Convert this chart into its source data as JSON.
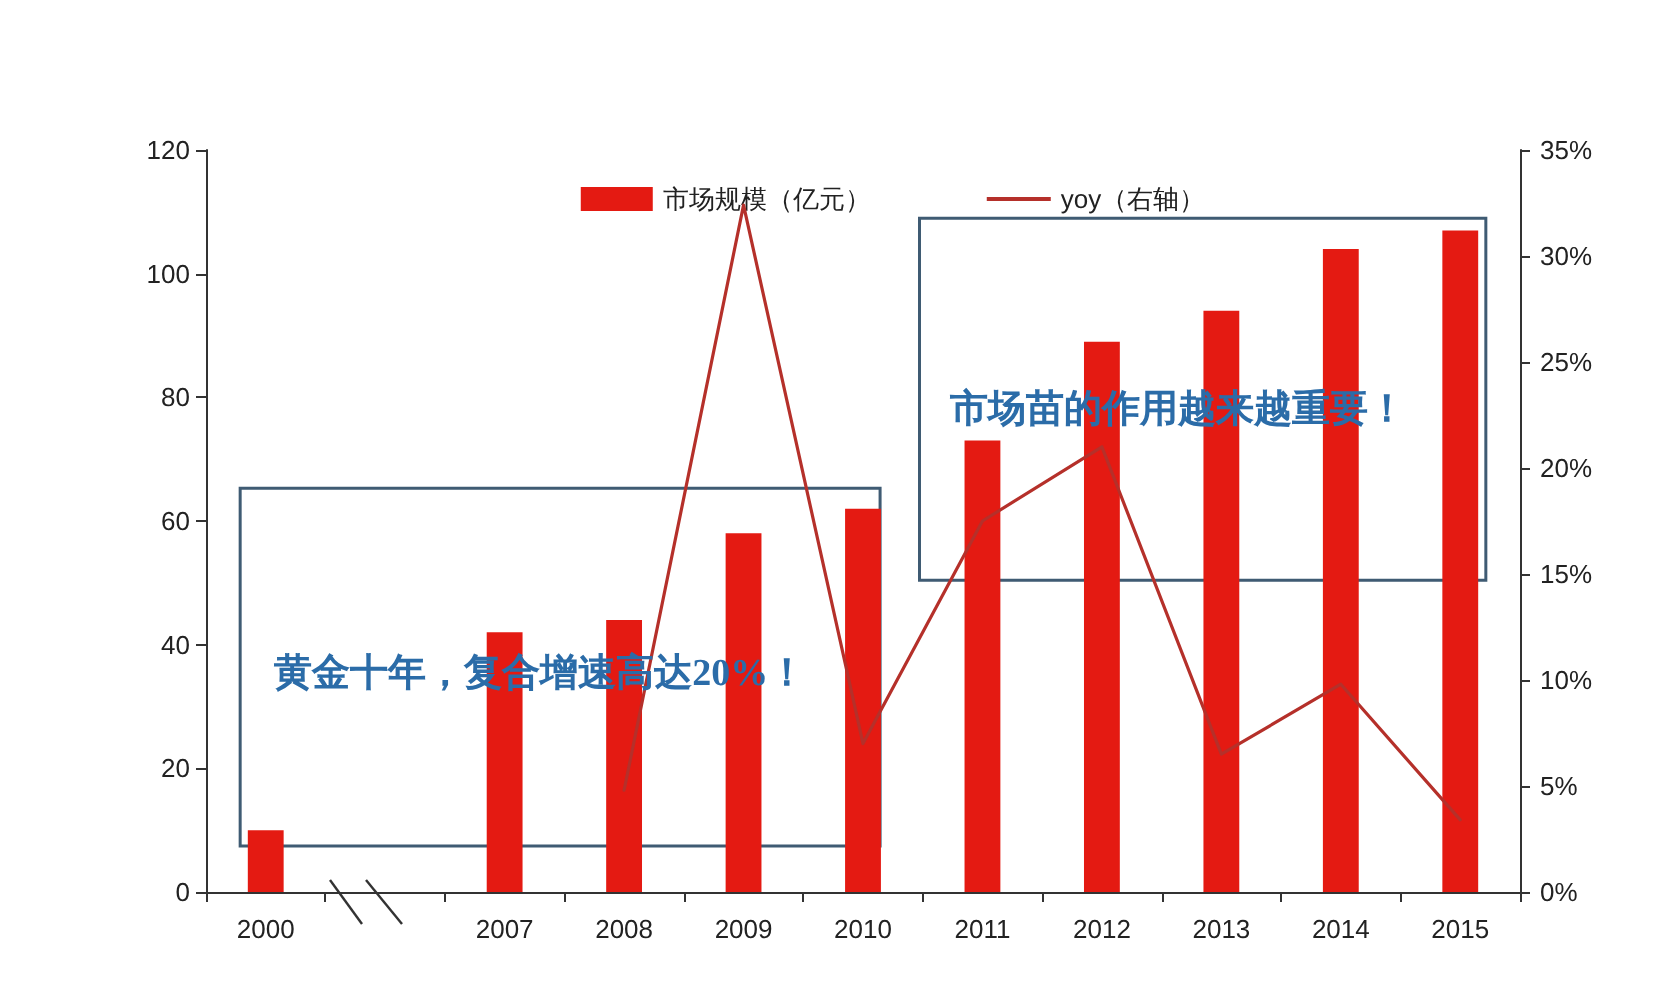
{
  "chart_data": {
    "type": "bar",
    "categories": [
      "2000",
      null,
      "2007",
      "2008",
      "2009",
      "2010",
      "2011",
      "2012",
      "2013",
      "2014",
      "2015"
    ],
    "series": [
      {
        "name": "市场规模（亿元）",
        "color": "#e41a12",
        "values": [
          10,
          null,
          42,
          44,
          58,
          62,
          73,
          89,
          94,
          104,
          107
        ]
      },
      {
        "name": "yoy（右轴）",
        "type": "line",
        "axis": "y2",
        "color": "#b5302a",
        "values": [
          null,
          null,
          null,
          4.8,
          32.4,
          7,
          17.5,
          21,
          6.5,
          9.8,
          3.4
        ]
      }
    ],
    "ylim": [
      0,
      120
    ],
    "yticks": [
      0,
      20,
      40,
      60,
      80,
      100,
      120
    ],
    "y2lim": [
      0,
      35
    ],
    "y2ticks": [
      {
        "value": 0,
        "label": "0%"
      },
      {
        "value": 5,
        "label": "5%"
      },
      {
        "value": 10,
        "label": "10%"
      },
      {
        "value": 15,
        "label": "15%"
      },
      {
        "value": 20,
        "label": "20%"
      },
      {
        "value": 25,
        "label": "25%"
      },
      {
        "value": 30,
        "label": "30%"
      },
      {
        "value": 35,
        "label": "35%"
      }
    ],
    "annotations": [
      "黄金十年，复合增速高达20%！",
      "市场苗的作用越来越重要！"
    ],
    "legend": "top",
    "grid": false,
    "marker": "none",
    "line_style": "solid"
  }
}
